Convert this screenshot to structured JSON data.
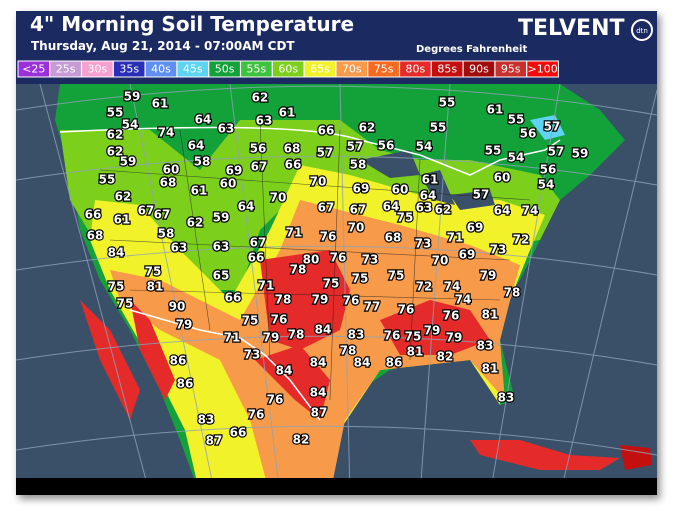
{
  "header": {
    "title": "4\" Morning Soil Temperature",
    "subtitle": "Thursday, Aug 21, 2014 - 07:00AM CDT",
    "units": "Degrees Fahrenheit",
    "brand": "TELVENT",
    "brand_mark": "dtn"
  },
  "legend": [
    {
      "label": "<25",
      "color": "#9b30d9"
    },
    {
      "label": "25s",
      "color": "#c79bd6"
    },
    {
      "label": "30s",
      "color": "#f7a1d1"
    },
    {
      "label": "35s",
      "color": "#2a2fb8"
    },
    {
      "label": "40s",
      "color": "#5f8ff0"
    },
    {
      "label": "45s",
      "color": "#5fd3f2"
    },
    {
      "label": "50s",
      "color": "#13a13a"
    },
    {
      "label": "55s",
      "color": "#3cc23c"
    },
    {
      "label": "60s",
      "color": "#7ccf1b"
    },
    {
      "label": "65s",
      "color": "#f2f22a"
    },
    {
      "label": "70s",
      "color": "#f79a4a"
    },
    {
      "label": "75s",
      "color": "#f56a1f"
    },
    {
      "label": "80s",
      "color": "#e52a2a"
    },
    {
      "label": "85s",
      "color": "#c40f0f"
    },
    {
      "label": "90s",
      "color": "#a00b0b"
    },
    {
      "label": "95s",
      "color": "#c8302e"
    },
    {
      "label": ">100",
      "color": "#f20a0a"
    }
  ],
  "map": {
    "labels": [
      59,
      61,
      62,
      55,
      55,
      61,
      61,
      54,
      64,
      63,
      55,
      62,
      74,
      63,
      66,
      62,
      55,
      56,
      57,
      62,
      68,
      56,
      64,
      59,
      60,
      58,
      69,
      67,
      66,
      57,
      57,
      56,
      54,
      55,
      54,
      57,
      59,
      56,
      55,
      68,
      61,
      60,
      70,
      69,
      60,
      61,
      58,
      60,
      54,
      62,
      70,
      64,
      57,
      66,
      61,
      67,
      67,
      62,
      59,
      64,
      67,
      67,
      64,
      75,
      63,
      62,
      64,
      74,
      68,
      58,
      71,
      76,
      70,
      68,
      73,
      71,
      69,
      72,
      84,
      63,
      63,
      67,
      66,
      78,
      80,
      76,
      73,
      70,
      69,
      73,
      75,
      65,
      75,
      75,
      75,
      72,
      74,
      79,
      75,
      81,
      71,
      78,
      79,
      76,
      77,
      76,
      74,
      78,
      75,
      90,
      66,
      75,
      76,
      84,
      83,
      76,
      79,
      76,
      81,
      79,
      71,
      79,
      78,
      78,
      75,
      79,
      83,
      86,
      73,
      84,
      84,
      86,
      81,
      82,
      81,
      86,
      84,
      76,
      84,
      83,
      83,
      76,
      87,
      87,
      66,
      82
    ]
  }
}
